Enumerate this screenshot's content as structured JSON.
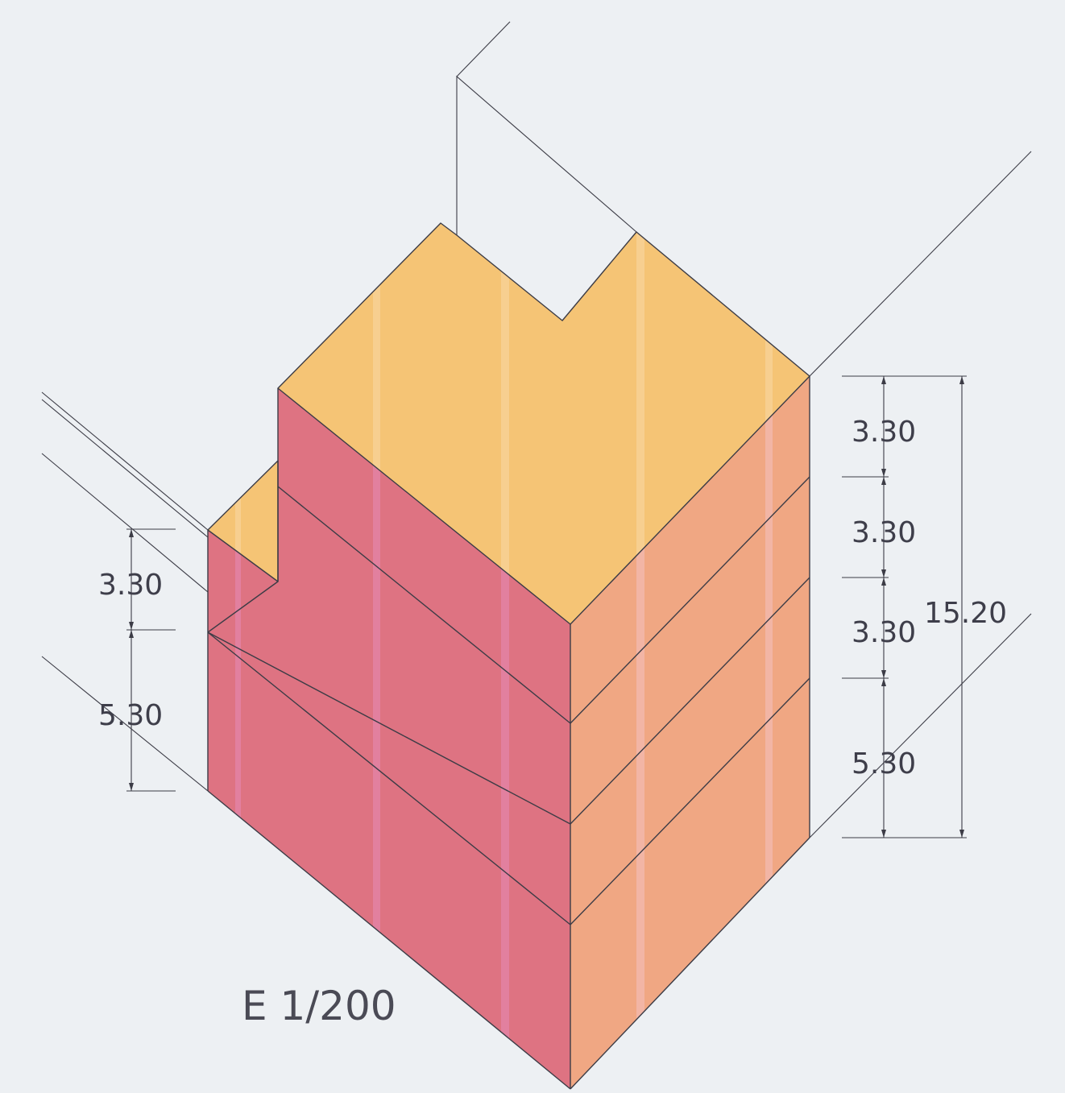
{
  "drawing": {
    "scale_label": "E 1/200",
    "colors": {
      "background": "#edf0f3",
      "roof": "#f5c475",
      "front_face": "#de7382",
      "side_face": "#f0a783",
      "stripe_front": "#e58ab8",
      "stripe_side": "#f5c2c2",
      "stripe_roof": "#f8d9a6",
      "line": "#3c3c46"
    },
    "left_dimensions": [
      "3.30",
      "5.30"
    ],
    "right_dimensions": [
      "3.30",
      "3.30",
      "3.30",
      "5.30"
    ],
    "total_height": "15.20"
  }
}
